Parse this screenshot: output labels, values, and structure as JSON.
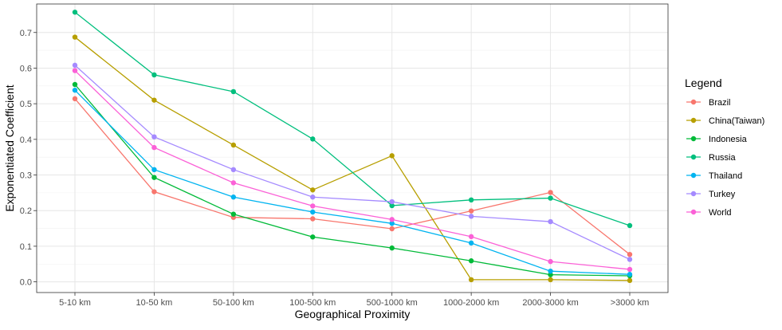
{
  "chart_data": {
    "type": "line",
    "title": "",
    "xlabel": "Geographical Proximity",
    "ylabel": "Exponentiated Coefficient",
    "categories": [
      "5-10 km",
      "10-50 km",
      "50-100 km",
      "100-500 km",
      "500-1000 km",
      "1000-2000 km",
      "2000-3000 km",
      ">3000 km"
    ],
    "yticks": [
      "0.0",
      "0.1",
      "0.2",
      "0.3",
      "0.4",
      "0.5",
      "0.6",
      "0.7"
    ],
    "ylim": [
      -0.03,
      0.78
    ],
    "grid": true,
    "legend": {
      "title": "Legend",
      "position": "right"
    },
    "series": [
      {
        "name": "Brazil",
        "color": "#F8766D",
        "values": [
          0.514,
          0.253,
          0.181,
          0.177,
          0.149,
          0.199,
          0.251,
          0.077
        ]
      },
      {
        "name": "China(Taiwan)",
        "color": "#B79F00",
        "values": [
          0.687,
          0.51,
          0.384,
          0.258,
          0.354,
          0.006,
          0.006,
          0.004
        ]
      },
      {
        "name": "Indonesia",
        "color": "#00BA38",
        "values": [
          0.554,
          0.293,
          0.19,
          0.126,
          0.095,
          0.059,
          0.02,
          0.017
        ]
      },
      {
        "name": "Russia",
        "color": "#00BF7D",
        "values": [
          0.757,
          0.581,
          0.534,
          0.401,
          0.214,
          0.23,
          0.235,
          0.158
        ]
      },
      {
        "name": "Thailand",
        "color": "#00B4F0",
        "values": [
          0.538,
          0.315,
          0.238,
          0.196,
          0.164,
          0.109,
          0.03,
          0.021
        ]
      },
      {
        "name": "Turkey",
        "color": "#A58AFF",
        "values": [
          0.608,
          0.407,
          0.315,
          0.238,
          0.225,
          0.184,
          0.169,
          0.063
        ]
      },
      {
        "name": "World",
        "color": "#FB61D7",
        "values": [
          0.593,
          0.377,
          0.278,
          0.213,
          0.175,
          0.127,
          0.057,
          0.035
        ]
      }
    ]
  }
}
